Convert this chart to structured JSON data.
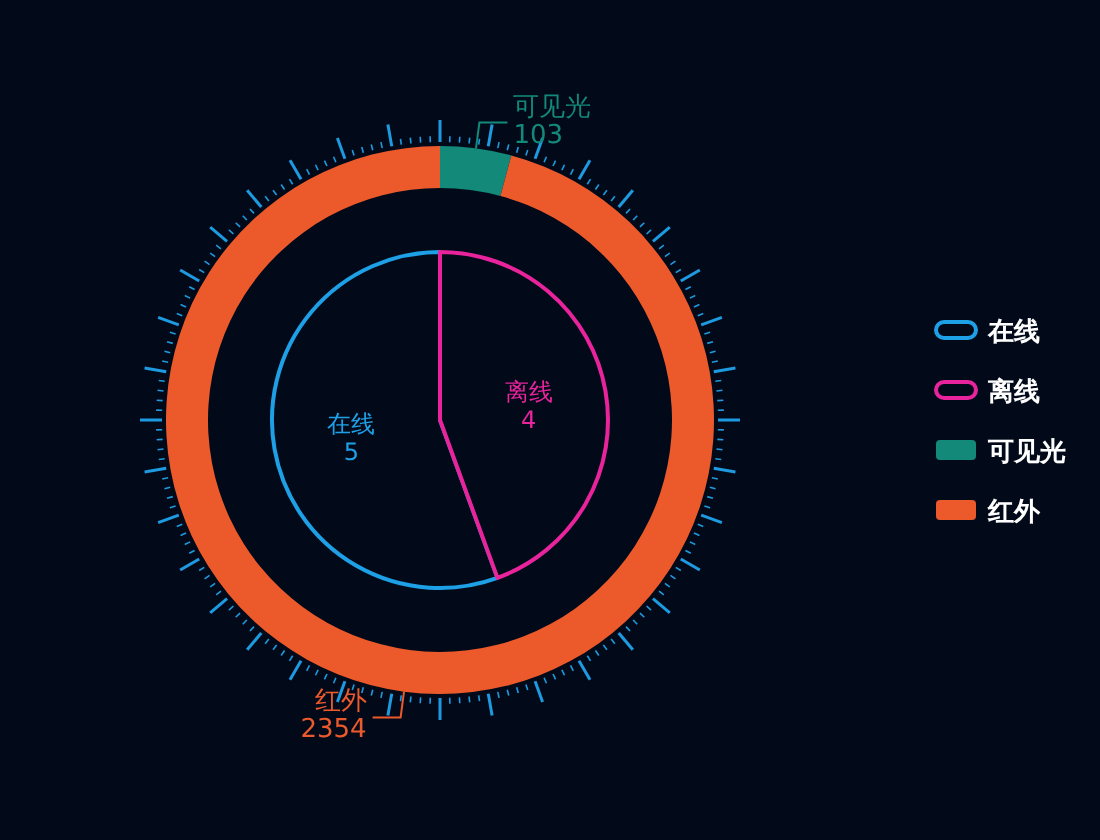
{
  "chart_data": [
    {
      "type": "pie",
      "categories": [
        "在线",
        "离线"
      ],
      "values": [
        5,
        4
      ],
      "colors": [
        "#1ea0e6",
        "#e8239b"
      ],
      "data_labels": true,
      "legend": "right"
    },
    {
      "type": "donut",
      "categories": [
        "可见光",
        "红外"
      ],
      "values": [
        103,
        2354
      ],
      "colors": [
        "#13897a",
        "#ec5a2c"
      ],
      "data_labels": true,
      "legend": "right"
    }
  ]
}
